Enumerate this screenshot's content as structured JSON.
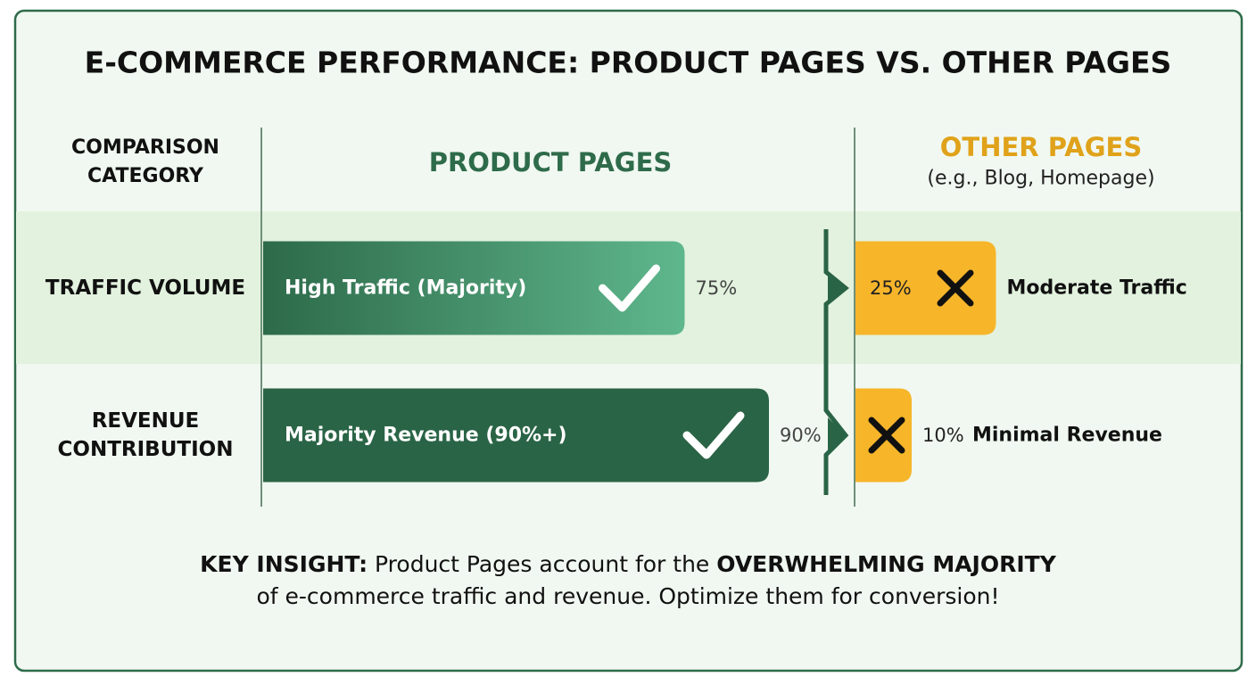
{
  "chart_data": {
    "type": "comparison-bar",
    "title": "E-COMMERCE PERFORMANCE: PRODUCT PAGES VS. OTHER PAGES",
    "category_header": "COMPARISON CATEGORY",
    "product_header": "PRODUCT PAGES",
    "other_header": "OTHER PAGES",
    "other_subheader": "(e.g., Blog, Homepage)",
    "product_color": "#2a6446",
    "other_color": "#f7b52a",
    "rows": [
      {
        "category": "TRAFFIC VOLUME",
        "product": {
          "label": "High Traffic (Majority)",
          "value": 75,
          "value_label": "75%"
        },
        "other": {
          "label": "Moderate Traffic",
          "value": 25,
          "value_label": "25%"
        }
      },
      {
        "category": "REVENUE CONTRIBUTION",
        "product": {
          "label": "Majority Revenue (90%+)",
          "value": 90,
          "value_label": "90%"
        },
        "other": {
          "label": "Minimal Revenue",
          "value": 10,
          "value_label": "10%"
        }
      }
    ],
    "insight": [
      "KEY INSIGHT:",
      " Product Pages account for the ",
      "OVERWHELMING MAJORITY",
      "of e-commerce traffic and revenue. Optimize them for conversion!"
    ]
  }
}
